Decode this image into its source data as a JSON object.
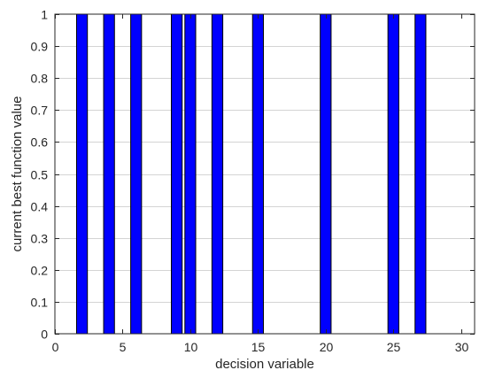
{
  "chart_data": {
    "type": "bar",
    "title": "",
    "xlabel": "decision variable",
    "ylabel": "current best function value",
    "xlim": [
      0,
      31
    ],
    "ylim": [
      0,
      1
    ],
    "xticks": [
      0,
      5,
      10,
      15,
      20,
      25,
      30
    ],
    "yticks": [
      0,
      0.1,
      0.2,
      0.3,
      0.4,
      0.5,
      0.6,
      0.7,
      0.8,
      0.9,
      1
    ],
    "grid": "horizontal",
    "bar_color": "#0000ff",
    "x": [
      2,
      4,
      6,
      9,
      10,
      12,
      15,
      20,
      25,
      27
    ],
    "values": [
      1,
      1,
      1,
      1,
      1,
      1,
      1,
      1,
      1,
      1
    ]
  }
}
